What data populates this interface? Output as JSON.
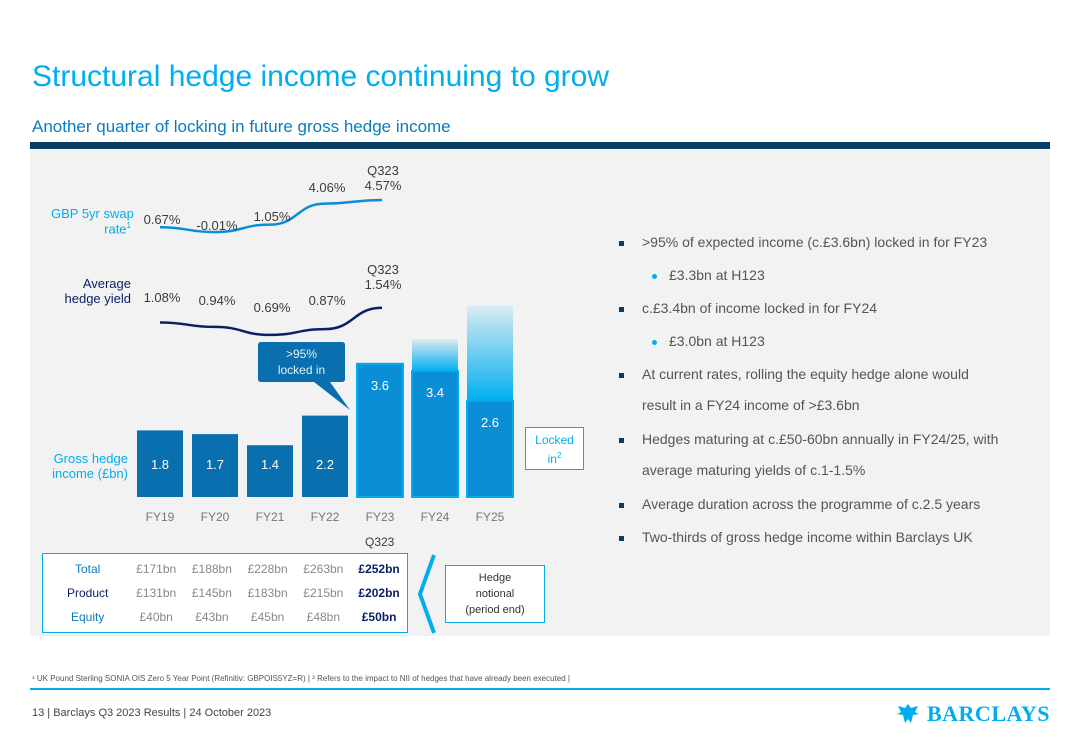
{
  "slide": {
    "title": "Structural hedge income continuing to grow",
    "subtitle": "Another quarter of locking in future gross hedge income"
  },
  "labels": {
    "swap_rate": "GBP 5yr swap",
    "swap_rate_2": "rate",
    "swap_rate_sup": "1",
    "hedge_yield": "Average",
    "hedge_yield_2": "hedge yield",
    "gross_income": "Gross hedge",
    "gross_income_2": "income (£bn)",
    "q323_swap_a": "Q323",
    "q323_swap_b": "4.57%",
    "q323_yield_a": "Q323",
    "q323_yield_b": "1.54%",
    "callout_a": ">95%",
    "callout_b": "locked in",
    "locked_a": "Locked",
    "locked_b": "in",
    "locked_sup": "2",
    "table_q323": "Q323",
    "hedge_notional_a": "Hedge",
    "hedge_notional_b": "notional",
    "hedge_notional_c": "(period end)"
  },
  "chart_data": [
    {
      "type": "bar",
      "categories": [
        "FY19",
        "FY20",
        "FY21",
        "FY22",
        "FY23",
        "FY24",
        "FY25"
      ],
      "series": [
        {
          "name": "Gross hedge income (£bn)",
          "values": [
            1.8,
            1.7,
            1.4,
            2.2,
            3.6,
            3.4,
            2.6
          ]
        }
      ],
      "ylabel": "Gross hedge income (£bn)",
      "ylim": [
        0,
        5.5
      ],
      "colors": {
        "historic": "#0a6fae",
        "current": "#0b8ed6",
        "fade": "#00aeef"
      }
    },
    {
      "type": "line",
      "name": "GBP 5yr swap rate",
      "categories": [
        "FY19",
        "FY20",
        "FY21",
        "FY22",
        "Q323"
      ],
      "values": [
        0.67,
        -0.01,
        1.05,
        4.06,
        4.57
      ],
      "value_labels": [
        "0.67%",
        "-0.01%",
        "1.05%",
        "4.06%",
        "4.57%"
      ],
      "color": "#0b8ed6"
    },
    {
      "type": "line",
      "name": "Average hedge yield",
      "categories": [
        "FY19",
        "FY20",
        "FY21",
        "FY22",
        "Q323"
      ],
      "values": [
        1.08,
        0.94,
        0.69,
        0.87,
        1.54
      ],
      "value_labels": [
        "1.08%",
        "0.94%",
        "0.69%",
        "0.87%",
        "1.54%"
      ],
      "color": "#0b1f66"
    }
  ],
  "notional_table": {
    "rows": [
      {
        "label": "Total",
        "values": [
          "£171bn",
          "£188bn",
          "£228bn",
          "£263bn",
          "£252bn"
        ]
      },
      {
        "label": "Product",
        "values": [
          "£131bn",
          "£145bn",
          "£183bn",
          "£215bn",
          "£202bn"
        ]
      },
      {
        "label": "Equity",
        "values": [
          "£40bn",
          "£43bn",
          "£45bn",
          "£48bn",
          "£50bn"
        ]
      }
    ]
  },
  "bullets": [
    {
      "level": 1,
      "text": ">95% of expected income (c.£3.6bn) locked in for FY23"
    },
    {
      "level": 2,
      "text": "£3.3bn at H123"
    },
    {
      "level": 1,
      "text": "c.£3.4bn of income locked in for FY24"
    },
    {
      "level": 2,
      "text": "£3.0bn at H123"
    },
    {
      "level": 1,
      "text": "At current rates, rolling the equity hedge alone would"
    },
    {
      "level": 0,
      "text": "result in a FY24 income of >£3.6bn"
    },
    {
      "level": 1,
      "text": "Hedges maturing at c.£50-60bn annually in FY24/25, with"
    },
    {
      "level": 0,
      "text": "average maturing yields of c.1-1.5%"
    },
    {
      "level": 1,
      "text": "Average duration across the programme of c.2.5 years"
    },
    {
      "level": 1,
      "text": "Two-thirds of gross hedge income within Barclays UK"
    }
  ],
  "footnote": "¹ UK Pound Sterling SONIA OIS Zero 5 Year Point (Refinitiv: GBPOIS5YZ=R) | ² Refers to the impact to NII of hedges that have already been executed |",
  "footer": {
    "text": "13  |  Barclays Q3 2023 Results  |  24 October 2023",
    "logo": "BARCLAYS"
  }
}
